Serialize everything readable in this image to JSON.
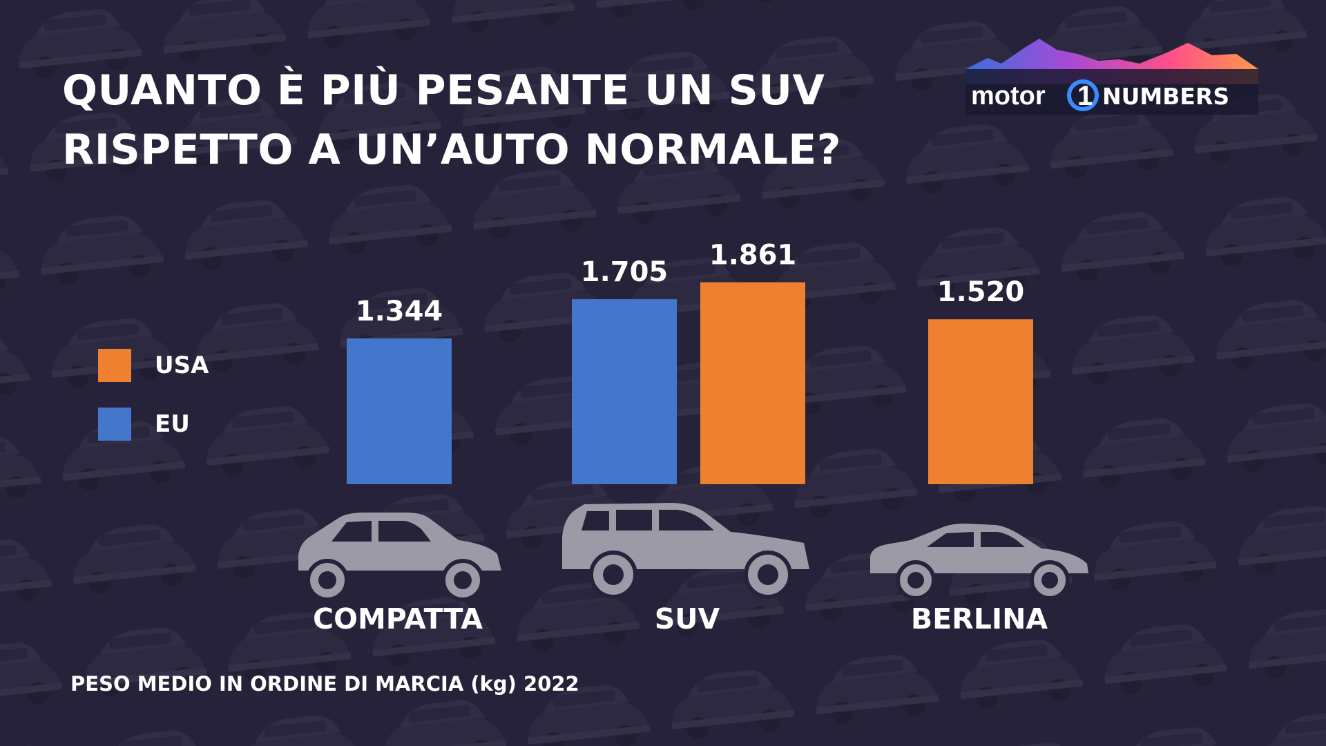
{
  "title": {
    "line1": "QUANTO È PIÙ PESANTE UN SUV",
    "line2": "RISPETTO A UN’AUTO NORMALE?"
  },
  "logo": {
    "brand": "motor",
    "number": "1",
    "suffix": "NUMBERS"
  },
  "colors": {
    "background": "#25223a",
    "eu": "#4477cc",
    "usa": "#ef8030",
    "car_icon": "#9c9aa6",
    "text": "#ffffff"
  },
  "legend": [
    {
      "name": "USA",
      "color": "#ef8030"
    },
    {
      "name": "EU",
      "color": "#4477cc"
    }
  ],
  "chart_data": {
    "type": "bar",
    "title": "QUANTO È PIÙ PESANTE UN SUV RISPETTO A UN’AUTO NORMALE?",
    "categories": [
      "COMPATTA",
      "SUV",
      "BERLINA"
    ],
    "series": [
      {
        "name": "EU",
        "values": [
          1344,
          1705,
          null
        ]
      },
      {
        "name": "USA",
        "values": [
          null,
          1861,
          1520
        ]
      }
    ],
    "value_labels": {
      "EU": [
        "1.344",
        "1.705",
        null
      ],
      "USA": [
        null,
        "1.861",
        "1.520"
      ]
    },
    "ylabel": "PESO MEDIO IN ORDINE DI MARCIA (kg) 2022",
    "ylim": [
      0,
      2000
    ],
    "grid": false,
    "legend_position": "left",
    "category_icons": [
      "hatchback-icon",
      "suv-icon",
      "sedan-icon"
    ]
  },
  "footnote": "PESO MEDIO IN ORDINE DI MARCIA (kg) 2022"
}
